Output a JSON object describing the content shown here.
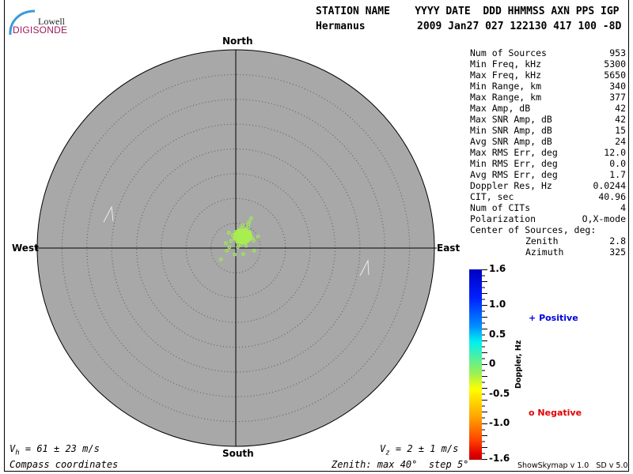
{
  "logo": {
    "line1": "Lowell",
    "line2": "DIGISONDE"
  },
  "header": {
    "labels": "STATION NAME    YYYY DATE  DDD HHMMSS AXN PPS IGP",
    "station": "Hermanus",
    "values": "2009 Jan27 027 122130 417 100 -8D"
  },
  "directions": {
    "north": "North",
    "south": "South",
    "east": "East",
    "west": "West"
  },
  "stats": [
    {
      "label": "Num of Sources",
      "value": "953"
    },
    {
      "label": "Min Freq, kHz",
      "value": "5300"
    },
    {
      "label": "Max Freq, kHz",
      "value": "5650"
    },
    {
      "label": "Min Range, km",
      "value": "340"
    },
    {
      "label": "Max Range, km",
      "value": "377"
    },
    {
      "label": "Max Amp, dB",
      "value": "42"
    },
    {
      "label": "Max SNR Amp, dB",
      "value": "42"
    },
    {
      "label": "Min SNR Amp, dB",
      "value": "15"
    },
    {
      "label": "Avg SNR Amp, dB",
      "value": "24"
    },
    {
      "label": "Max RMS Err, deg",
      "value": "12.0"
    },
    {
      "label": "Min RMS Err, deg",
      "value": "0.0"
    },
    {
      "label": "Avg RMS Err, deg",
      "value": "1.7"
    },
    {
      "label": "Doppler Res, Hz",
      "value": "0.0244"
    },
    {
      "label": "CIT, sec",
      "value": "40.96"
    },
    {
      "label": "Num of CITs",
      "value": "4"
    },
    {
      "label": "Polarization",
      "value": "O,X-mode"
    }
  ],
  "center": {
    "title": "Center of Sources, deg:",
    "zenith_label": "Zenith",
    "zenith": "2.8",
    "azimuth_label": "Azimuth",
    "azimuth": "325"
  },
  "footer": {
    "vh": "V",
    "vh_sub": "h",
    "vh_val": " = 61 ± 23 m/s",
    "vz": "V",
    "vz_sub": "z",
    "vz_val": " = 2 ± 1 m/s",
    "coords": "Compass coordinates",
    "zenith": "Zenith: max 40°  step 5°"
  },
  "colorbar": {
    "label": "Doppler, Hz",
    "ticks": [
      "1.6",
      "1.0",
      "0.5",
      "0",
      "-0.5",
      "-1.0",
      "-1.6"
    ]
  },
  "legend": {
    "positive_symbol": "+",
    "positive": "Positive",
    "negative_symbol": "o",
    "negative": "Negative",
    "positive_color": "#0000e0",
    "negative_color": "#e00000"
  },
  "version": "ShowSkymap v 1.0   SD v 5.0",
  "chart_data": {
    "type": "scatter",
    "coordinates": "polar skymap, zenith 0-40 deg, step 5 deg",
    "zenith_max": 40,
    "zenith_step": 5,
    "background": "#a8a8a8",
    "point_color": "#a0f050",
    "points_east_north_deg": [
      [
        1.0,
        2.5
      ],
      [
        1.5,
        2.0
      ],
      [
        0.5,
        2.2
      ],
      [
        1.8,
        3.0
      ],
      [
        2.2,
        2.6
      ],
      [
        0.8,
        1.6
      ],
      [
        1.3,
        3.4
      ],
      [
        2.6,
        1.8
      ],
      [
        0.2,
        2.9
      ],
      [
        1.6,
        1.3
      ],
      [
        2.0,
        3.8
      ],
      [
        3.0,
        2.4
      ],
      [
        -0.3,
        1.9
      ],
      [
        1.1,
        4.0
      ],
      [
        2.8,
        3.2
      ],
      [
        0.6,
        3.6
      ],
      [
        1.9,
        1.0
      ],
      [
        -0.6,
        2.6
      ],
      [
        3.3,
        2.0
      ],
      [
        1.4,
        2.8
      ],
      [
        0.9,
        2.3
      ],
      [
        1.7,
        2.4
      ],
      [
        2.4,
        2.1
      ],
      [
        0.3,
        1.2
      ],
      [
        1.2,
        1.8
      ],
      [
        2.5,
        4.3
      ],
      [
        -1.0,
        1.4
      ],
      [
        3.6,
        1.5
      ],
      [
        1.0,
        0.6
      ],
      [
        0.0,
        3.3
      ],
      [
        -1.3,
        0.2
      ],
      [
        -1.8,
        -0.5
      ],
      [
        2.7,
        5.3
      ],
      [
        3.1,
        6.0
      ],
      [
        -0.2,
        -1.3
      ],
      [
        1.5,
        -1.2
      ],
      [
        3.7,
        -0.5
      ],
      [
        -3.0,
        -2.3
      ],
      [
        2.5,
        4.8
      ],
      [
        0.4,
        0.2
      ],
      [
        4.5,
        2.3
      ],
      [
        -1.4,
        3.1
      ],
      [
        2.1,
        0.4
      ],
      [
        1.4,
        4.6
      ],
      [
        -2.0,
        1.0
      ]
    ]
  }
}
